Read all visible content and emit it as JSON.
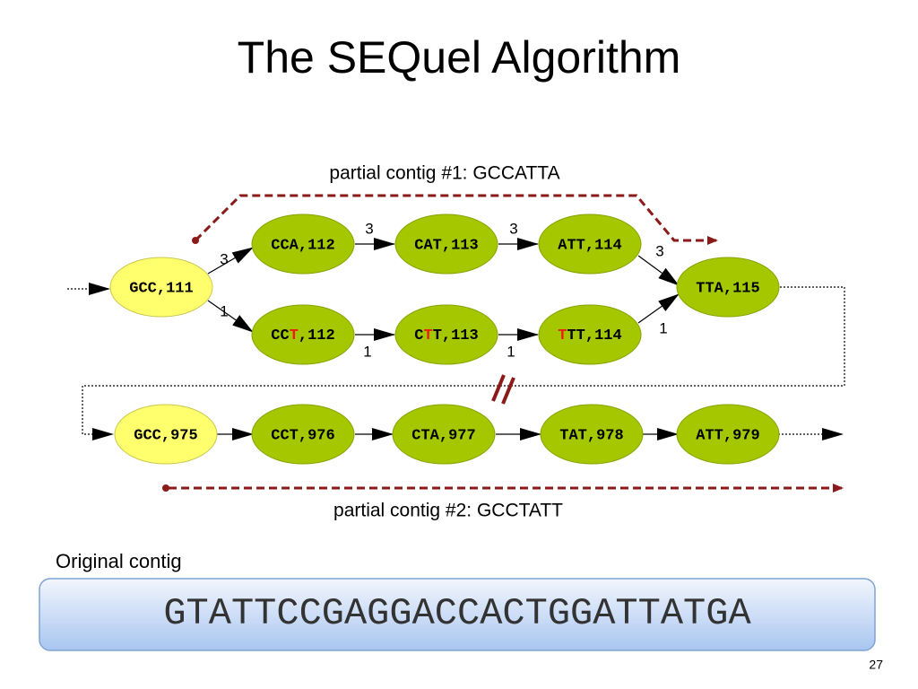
{
  "title": "The SEQuel Algorithm",
  "contig1": "partial contig #1: GCCATTA",
  "contig2": "partial contig #2: GCCTATT",
  "nodes": [
    {
      "label": "GCC,111"
    },
    {
      "label": "CCA,112"
    },
    {
      "label": "CAT,113"
    },
    {
      "label": "ATT,114"
    },
    {
      "parts": [
        {
          "text": "CC"
        },
        {
          "text": "T",
          "color": "#e8200c"
        },
        {
          "text": ",112"
        }
      ]
    },
    {
      "parts": [
        {
          "text": "C"
        },
        {
          "text": "T",
          "color": "#e8200c"
        },
        {
          "text": "T,113"
        }
      ]
    },
    {
      "parts": [
        {
          "text": "T",
          "color": "#e8200c"
        },
        {
          "text": "TT,114"
        }
      ]
    },
    {
      "label": "TTA,115"
    },
    {
      "label": "GCC,975"
    },
    {
      "label": "CCT,976"
    },
    {
      "label": "CTA,977"
    },
    {
      "label": "TAT,978"
    },
    {
      "label": "ATT,979"
    }
  ],
  "edges": [
    {
      "weight": 3
    },
    {
      "weight": 1
    },
    {
      "weight": 3
    },
    {
      "weight": 3
    },
    {
      "weight": 3
    },
    {
      "weight": 1
    },
    {
      "weight": 1
    },
    {
      "weight": 1
    }
  ],
  "original": {
    "label": "Original contig",
    "sequence": "GTATTCCGAGGACCACTGGATTATGA"
  },
  "page_number": 27
}
